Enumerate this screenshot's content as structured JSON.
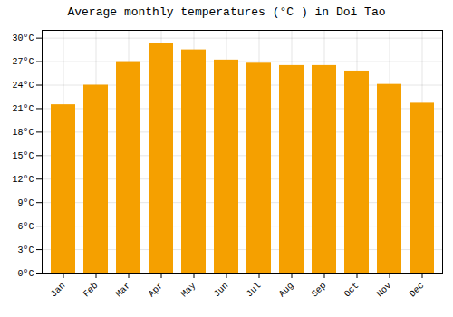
{
  "chart_data": {
    "type": "bar",
    "title": "Average monthly temperatures (°C ) in Doi Tao",
    "categories": [
      "Jan",
      "Feb",
      "Mar",
      "Apr",
      "May",
      "Jun",
      "Jul",
      "Aug",
      "Sep",
      "Oct",
      "Nov",
      "Dec"
    ],
    "values": [
      21.5,
      24.0,
      27.0,
      29.3,
      28.5,
      27.2,
      26.8,
      26.5,
      26.5,
      25.8,
      24.1,
      21.7
    ],
    "color": "#F5A000",
    "ylim": [
      0,
      31
    ],
    "yticks": [
      {
        "value": 0,
        "label": "0°C"
      },
      {
        "value": 3,
        "label": "3°C"
      },
      {
        "value": 6,
        "label": "6°C"
      },
      {
        "value": 9,
        "label": "9°C"
      },
      {
        "value": 12,
        "label": "12°C"
      },
      {
        "value": 15,
        "label": "15°C"
      },
      {
        "value": 18,
        "label": "18°C"
      },
      {
        "value": 21,
        "label": "21°C"
      },
      {
        "value": 24,
        "label": "24°C"
      },
      {
        "value": 27,
        "label": "27°C"
      },
      {
        "value": 30,
        "label": "30°C"
      }
    ],
    "grid": true
  }
}
